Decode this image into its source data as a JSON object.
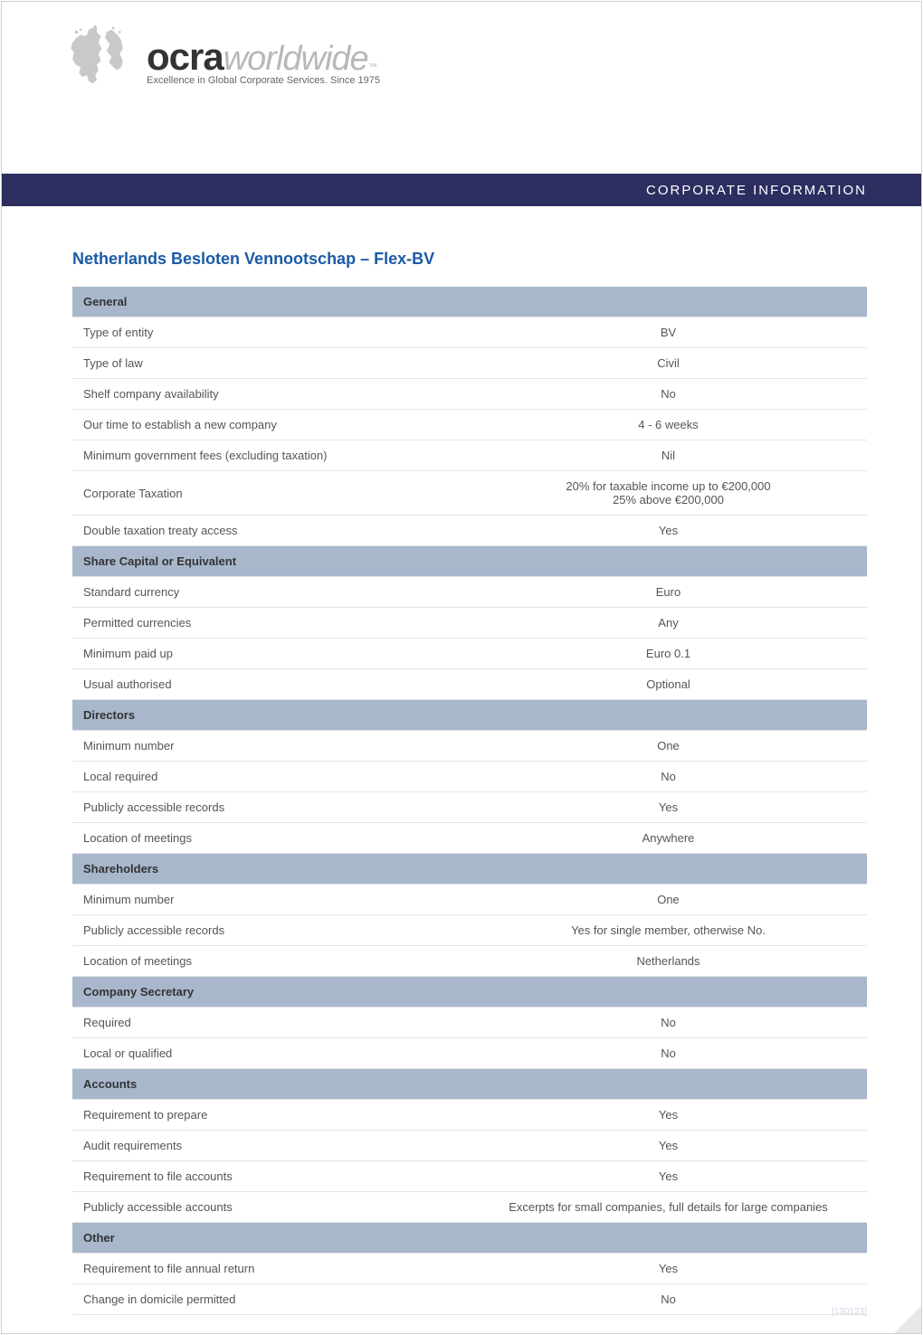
{
  "branding": {
    "logo_bold": "ocra",
    "logo_italic": "worldwide",
    "logo_tm": "™",
    "tagline": "Excellence in Global Corporate Services. Since 1975",
    "band_text": "CORPORATE INFORMATION",
    "colors": {
      "band_bg": "#2c2e60",
      "band_text": "#ffffff",
      "title": "#1b5aa6",
      "section_bg": "#a8b7cc",
      "section_text": "#333333",
      "body_text": "#555555",
      "row_border": "#e5e5e5",
      "globe": "#c0c0c0",
      "worldwide": "#b8b8b8",
      "footer": "#cfd8e6"
    }
  },
  "title": "Netherlands Besloten Vennootschap  – Flex-BV",
  "sections": [
    {
      "heading": "General",
      "rows": [
        {
          "label": "Type of entity",
          "value": "BV"
        },
        {
          "label": "Type of law",
          "value": "Civil"
        },
        {
          "label": "Shelf company availability",
          "value": "No"
        },
        {
          "label": "Our time to establish a new company",
          "value": "4  - 6 weeks"
        },
        {
          "label": "Minimum government fees (excluding taxation)",
          "value": "Nil"
        },
        {
          "label": "Corporate Taxation",
          "value": "20% for taxable income up to €200,000\n25% above €200,000"
        },
        {
          "label": "Double taxation treaty access",
          "value": "Yes"
        }
      ]
    },
    {
      "heading": "Share Capital or Equivalent",
      "rows": [
        {
          "label": "Standard currency",
          "value": "Euro"
        },
        {
          "label": "Permitted currencies",
          "value": "Any"
        },
        {
          "label": "Minimum paid up",
          "value": "Euro 0.1"
        },
        {
          "label": "Usual authorised",
          "value": "Optional"
        }
      ]
    },
    {
      "heading": "Directors",
      "rows": [
        {
          "label": "Minimum number",
          "value": "One"
        },
        {
          "label": "Local required",
          "value": "No"
        },
        {
          "label": "Publicly accessible records",
          "value": "Yes"
        },
        {
          "label": "Location of meetings",
          "value": "Anywhere"
        }
      ]
    },
    {
      "heading": "Shareholders",
      "rows": [
        {
          "label": "Minimum number",
          "value": "One"
        },
        {
          "label": "Publicly accessible records",
          "value": "Yes for single member, otherwise No."
        },
        {
          "label": "Location of meetings",
          "value": "Netherlands"
        }
      ]
    },
    {
      "heading": "Company Secretary",
      "rows": [
        {
          "label": "Required",
          "value": "No"
        },
        {
          "label": "Local or qualified",
          "value": "No"
        }
      ]
    },
    {
      "heading": "Accounts",
      "rows": [
        {
          "label": "Requirement to prepare",
          "value": "Yes"
        },
        {
          "label": "Audit requirements",
          "value": "Yes"
        },
        {
          "label": "Requirement to file accounts",
          "value": "Yes"
        },
        {
          "label": "Publicly accessible accounts",
          "value": "Excerpts for small companies, full details for large companies"
        }
      ]
    },
    {
      "heading": "Other",
      "rows": [
        {
          "label": "Requirement to file annual return",
          "value": "Yes"
        },
        {
          "label": "Change in domicile permitted",
          "value": "No"
        }
      ]
    }
  ],
  "footer_ref": "[130123]"
}
